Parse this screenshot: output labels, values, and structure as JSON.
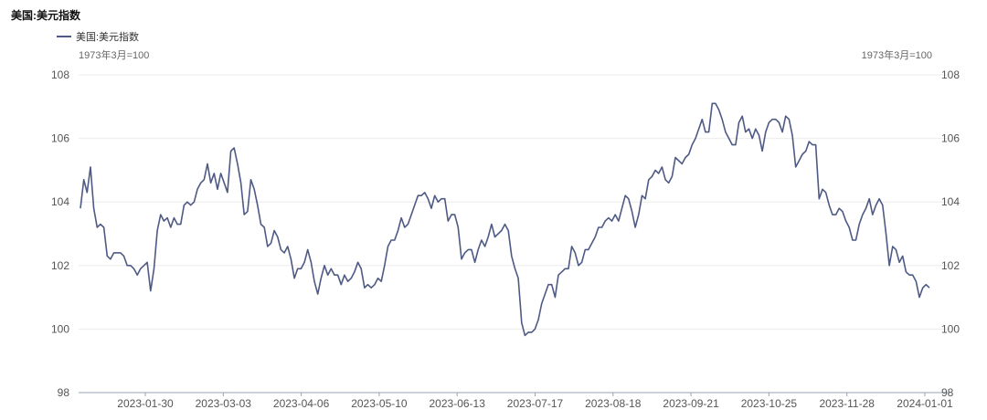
{
  "title": "美国:美元指数",
  "chart_data": {
    "type": "line",
    "title": "美国:美元指数",
    "ylabel_left": "1973年3月=100",
    "ylabel_right": "1973年3月=100",
    "ylim": [
      98,
      108
    ],
    "yticks": [
      "98",
      "100",
      "102",
      "104",
      "106",
      "108"
    ],
    "xticks": [
      "2023-01-30",
      "2023-03-03",
      "2023-04-06",
      "2023-05-10",
      "2023-06-13",
      "2023-07-17",
      "2023-08-18",
      "2023-09-21",
      "2023-10-25",
      "2023-11-28",
      "2024-01-01"
    ],
    "grid": true,
    "legend": "top-left",
    "series": [
      {
        "name": "美国:美元指数",
        "color": "#4e5a84",
        "values": [
          103.8,
          104.7,
          104.3,
          105.1,
          103.8,
          103.2,
          103.3,
          103.2,
          102.3,
          102.2,
          102.4,
          102.4,
          102.4,
          102.3,
          102.0,
          102.0,
          101.9,
          101.7,
          101.9,
          102.0,
          102.1,
          101.2,
          101.9,
          103.1,
          103.6,
          103.4,
          103.5,
          103.2,
          103.5,
          103.3,
          103.3,
          103.9,
          104.0,
          103.9,
          104.0,
          104.4,
          104.6,
          104.7,
          105.2,
          104.6,
          104.9,
          104.4,
          104.9,
          104.6,
          104.3,
          105.6,
          105.7,
          105.2,
          104.6,
          103.6,
          103.7,
          104.7,
          104.4,
          103.9,
          103.3,
          103.2,
          102.6,
          102.7,
          103.1,
          102.9,
          102.5,
          102.4,
          102.6,
          102.2,
          101.6,
          101.9,
          101.9,
          102.1,
          102.5,
          102.1,
          101.5,
          101.1,
          101.6,
          102.0,
          101.7,
          101.9,
          101.7,
          101.7,
          101.4,
          101.7,
          101.5,
          101.6,
          101.8,
          102.1,
          101.9,
          101.3,
          101.4,
          101.3,
          101.4,
          101.6,
          101.5,
          102.0,
          102.6,
          102.8,
          102.8,
          103.1,
          103.5,
          103.2,
          103.3,
          103.6,
          103.9,
          104.2,
          104.2,
          104.3,
          104.1,
          103.8,
          104.2,
          104.0,
          104.1,
          104.1,
          103.4,
          103.6,
          103.6,
          103.2,
          102.2,
          102.4,
          102.5,
          102.5,
          102.1,
          102.5,
          102.8,
          102.6,
          102.9,
          103.3,
          102.9,
          103.0,
          103.1,
          103.3,
          103.1,
          102.3,
          101.9,
          101.6,
          100.2,
          99.8,
          99.9,
          99.9,
          100.0,
          100.3,
          100.8,
          101.1,
          101.4,
          101.4,
          101.0,
          101.7,
          101.8,
          101.9,
          101.9,
          102.6,
          102.4,
          102.0,
          102.1,
          102.5,
          102.5,
          102.7,
          102.9,
          103.2,
          103.2,
          103.4,
          103.5,
          103.4,
          103.6,
          103.4,
          103.8,
          104.2,
          104.1,
          103.7,
          103.2,
          103.6,
          104.2,
          104.1,
          104.7,
          104.8,
          105.0,
          104.9,
          105.1,
          104.7,
          104.6,
          104.8,
          105.4,
          105.3,
          105.2,
          105.4,
          105.5,
          105.8,
          106.0,
          106.3,
          106.6,
          106.2,
          106.2,
          107.1,
          107.1,
          106.9,
          106.6,
          106.2,
          106.0,
          105.8,
          105.8,
          106.5,
          106.7,
          106.2,
          106.3,
          106.0,
          106.3,
          106.1,
          105.6,
          106.2,
          106.5,
          106.6,
          106.6,
          106.5,
          106.2,
          106.7,
          106.6,
          106.1,
          105.1,
          105.3,
          105.5,
          105.6,
          105.9,
          105.8,
          105.8,
          104.1,
          104.4,
          104.3,
          103.9,
          103.6,
          103.6,
          103.8,
          103.7,
          103.4,
          103.2,
          102.8,
          102.8,
          103.3,
          103.6,
          103.8,
          104.1,
          103.6,
          103.9,
          104.1,
          103.9,
          103.0,
          102.0,
          102.6,
          102.5,
          102.1,
          102.3,
          101.8,
          101.7,
          101.7,
          101.5,
          101.0,
          101.3,
          101.4,
          101.3
        ]
      }
    ]
  }
}
